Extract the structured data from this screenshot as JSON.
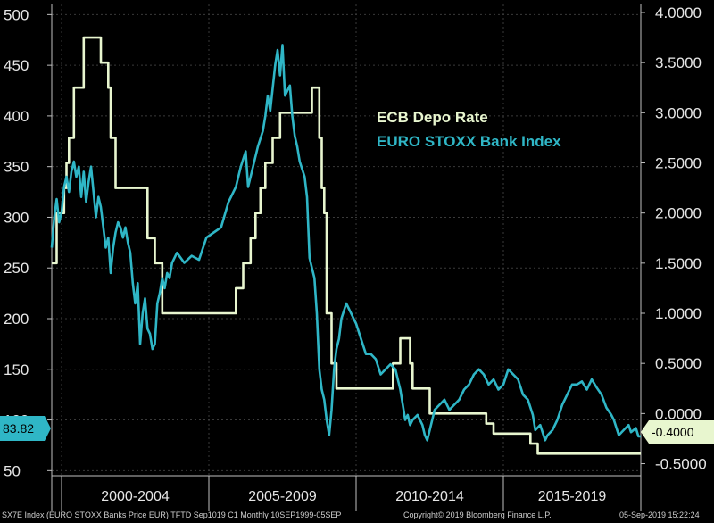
{
  "chart_data": {
    "type": "line",
    "title": "",
    "legend": {
      "placement": "top-right"
    },
    "grid": true,
    "x_range": [
      "1999-09",
      "2019-09"
    ],
    "period_labels": [
      "2000-2004",
      "2005-2009",
      "2010-2014",
      "2015-2019"
    ],
    "y_left": {
      "ticks": [
        "500",
        "450",
        "400",
        "350",
        "300",
        "250",
        "200",
        "150",
        "100",
        "50"
      ],
      "range": [
        45,
        510
      ]
    },
    "y_right": {
      "ticks": [
        "4.0000",
        "3.5000",
        "3.0000",
        "2.5000",
        "2.0000",
        "1.5000",
        "1.0000",
        "0.5000",
        "0.0000",
        "-0.5000"
      ],
      "range": [
        -0.62,
        4.08
      ]
    },
    "series": [
      {
        "name": "ECB Depo Rate",
        "axis": "right",
        "color": "#e8f6cf",
        "points": [
          [
            "1999-09",
            1.5
          ],
          [
            "1999-11",
            2.0
          ],
          [
            "2000-02",
            2.25
          ],
          [
            "2000-03",
            2.5
          ],
          [
            "2000-04",
            2.75
          ],
          [
            "2000-06",
            3.25
          ],
          [
            "2000-10",
            3.75
          ],
          [
            "2001-05",
            3.5
          ],
          [
            "2001-08",
            3.25
          ],
          [
            "2001-09",
            2.75
          ],
          [
            "2001-11",
            2.25
          ],
          [
            "2002-12",
            1.75
          ],
          [
            "2003-03",
            1.5
          ],
          [
            "2003-06",
            1.0
          ],
          [
            "2005-12",
            1.25
          ],
          [
            "2006-03",
            1.5
          ],
          [
            "2006-06",
            1.75
          ],
          [
            "2006-08",
            2.0
          ],
          [
            "2006-10",
            2.25
          ],
          [
            "2006-12",
            2.5
          ],
          [
            "2007-03",
            2.75
          ],
          [
            "2007-06",
            3.0
          ],
          [
            "2008-07",
            3.25
          ],
          [
            "2008-10",
            2.75
          ],
          [
            "2008-11",
            2.25
          ],
          [
            "2008-12",
            2.0
          ],
          [
            "2009-01",
            1.0
          ],
          [
            "2009-03",
            0.5
          ],
          [
            "2009-05",
            0.25
          ],
          [
            "2011-04",
            0.5
          ],
          [
            "2011-07",
            0.75
          ],
          [
            "2011-11",
            0.5
          ],
          [
            "2011-12",
            0.25
          ],
          [
            "2012-07",
            0.0
          ],
          [
            "2014-06",
            -0.1
          ],
          [
            "2014-09",
            -0.2
          ],
          [
            "2015-12",
            -0.3
          ],
          [
            "2016-03",
            -0.4
          ],
          [
            "2019-09",
            -0.4
          ]
        ]
      },
      {
        "name": "EURO STOXX Bank Index",
        "axis": "left",
        "color": "#2fb6c6",
        "points": [
          [
            "1999-09",
            270
          ],
          [
            "1999-10",
            300
          ],
          [
            "1999-11",
            318
          ],
          [
            "1999-12",
            295
          ],
          [
            "2000-01",
            305
          ],
          [
            "2000-02",
            330
          ],
          [
            "2000-03",
            340
          ],
          [
            "2000-04",
            325
          ],
          [
            "2000-05",
            345
          ],
          [
            "2000-06",
            355
          ],
          [
            "2000-07",
            340
          ],
          [
            "2000-08",
            350
          ],
          [
            "2000-09",
            320
          ],
          [
            "2000-10",
            345
          ],
          [
            "2000-11",
            315
          ],
          [
            "2000-12",
            335
          ],
          [
            "2001-01",
            350
          ],
          [
            "2001-02",
            325
          ],
          [
            "2001-03",
            300
          ],
          [
            "2001-04",
            320
          ],
          [
            "2001-05",
            310
          ],
          [
            "2001-06",
            290
          ],
          [
            "2001-07",
            270
          ],
          [
            "2001-08",
            280
          ],
          [
            "2001-09",
            245
          ],
          [
            "2001-10",
            270
          ],
          [
            "2001-11",
            285
          ],
          [
            "2001-12",
            295
          ],
          [
            "2002-01",
            290
          ],
          [
            "2002-02",
            280
          ],
          [
            "2002-03",
            290
          ],
          [
            "2002-04",
            275
          ],
          [
            "2002-05",
            265
          ],
          [
            "2002-06",
            235
          ],
          [
            "2002-07",
            215
          ],
          [
            "2002-08",
            235
          ],
          [
            "2002-09",
            175
          ],
          [
            "2002-10",
            205
          ],
          [
            "2002-11",
            220
          ],
          [
            "2002-12",
            190
          ],
          [
            "2003-01",
            185
          ],
          [
            "2003-02",
            170
          ],
          [
            "2003-03",
            175
          ],
          [
            "2003-04",
            215
          ],
          [
            "2003-05",
            225
          ],
          [
            "2003-06",
            240
          ],
          [
            "2003-07",
            230
          ],
          [
            "2003-08",
            245
          ],
          [
            "2003-09",
            240
          ],
          [
            "2003-10",
            255
          ],
          [
            "2003-11",
            260
          ],
          [
            "2003-12",
            265
          ],
          [
            "2004-03",
            255
          ],
          [
            "2004-06",
            262
          ],
          [
            "2004-09",
            258
          ],
          [
            "2004-12",
            280
          ],
          [
            "2005-03",
            285
          ],
          [
            "2005-06",
            290
          ],
          [
            "2005-09",
            315
          ],
          [
            "2005-12",
            330
          ],
          [
            "2006-02",
            350
          ],
          [
            "2006-04",
            365
          ],
          [
            "2006-05",
            330
          ],
          [
            "2006-06",
            340
          ],
          [
            "2006-09",
            370
          ],
          [
            "2006-11",
            385
          ],
          [
            "2006-12",
            400
          ],
          [
            "2007-01",
            420
          ],
          [
            "2007-02",
            405
          ],
          [
            "2007-04",
            450
          ],
          [
            "2007-05",
            465
          ],
          [
            "2007-06",
            440
          ],
          [
            "2007-07",
            470
          ],
          [
            "2007-08",
            420
          ],
          [
            "2007-10",
            430
          ],
          [
            "2007-11",
            400
          ],
          [
            "2007-12",
            380
          ],
          [
            "2008-01",
            370
          ],
          [
            "2008-02",
            355
          ],
          [
            "2008-04",
            340
          ],
          [
            "2008-05",
            320
          ],
          [
            "2008-06",
            260
          ],
          [
            "2008-07",
            250
          ],
          [
            "2008-08",
            240
          ],
          [
            "2008-09",
            205
          ],
          [
            "2008-10",
            150
          ],
          [
            "2008-11",
            130
          ],
          [
            "2008-12",
            120
          ],
          [
            "2009-01",
            100
          ],
          [
            "2009-02",
            85
          ],
          [
            "2009-03",
            110
          ],
          [
            "2009-04",
            150
          ],
          [
            "2009-05",
            170
          ],
          [
            "2009-06",
            180
          ],
          [
            "2009-07",
            200
          ],
          [
            "2009-09",
            215
          ],
          [
            "2009-11",
            205
          ],
          [
            "2010-01",
            195
          ],
          [
            "2010-03",
            180
          ],
          [
            "2010-05",
            165
          ],
          [
            "2010-07",
            165
          ],
          [
            "2010-09",
            160
          ],
          [
            "2010-11",
            145
          ],
          [
            "2011-01",
            150
          ],
          [
            "2011-03",
            155
          ],
          [
            "2011-05",
            150
          ],
          [
            "2011-07",
            130
          ],
          [
            "2011-08",
            115
          ],
          [
            "2011-09",
            100
          ],
          [
            "2011-10",
            105
          ],
          [
            "2011-11",
            95
          ],
          [
            "2011-12",
            100
          ],
          [
            "2012-02",
            105
          ],
          [
            "2012-04",
            95
          ],
          [
            "2012-05",
            85
          ],
          [
            "2012-06",
            80
          ],
          [
            "2012-07",
            90
          ],
          [
            "2012-09",
            110
          ],
          [
            "2012-11",
            115
          ],
          [
            "2013-01",
            120
          ],
          [
            "2013-03",
            110
          ],
          [
            "2013-05",
            115
          ],
          [
            "2013-07",
            120
          ],
          [
            "2013-09",
            130
          ],
          [
            "2013-11",
            135
          ],
          [
            "2014-01",
            145
          ],
          [
            "2014-03",
            150
          ],
          [
            "2014-05",
            145
          ],
          [
            "2014-07",
            135
          ],
          [
            "2014-09",
            140
          ],
          [
            "2014-11",
            130
          ],
          [
            "2015-01",
            135
          ],
          [
            "2015-03",
            150
          ],
          [
            "2015-05",
            145
          ],
          [
            "2015-07",
            140
          ],
          [
            "2015-09",
            125
          ],
          [
            "2015-11",
            120
          ],
          [
            "2016-01",
            105
          ],
          [
            "2016-02",
            90
          ],
          [
            "2016-04",
            95
          ],
          [
            "2016-06",
            80
          ],
          [
            "2016-07",
            85
          ],
          [
            "2016-09",
            90
          ],
          [
            "2016-11",
            100
          ],
          [
            "2017-01",
            115
          ],
          [
            "2017-03",
            125
          ],
          [
            "2017-05",
            135
          ],
          [
            "2017-07",
            135
          ],
          [
            "2017-09",
            138
          ],
          [
            "2017-11",
            130
          ],
          [
            "2018-01",
            140
          ],
          [
            "2018-03",
            132
          ],
          [
            "2018-05",
            125
          ],
          [
            "2018-07",
            112
          ],
          [
            "2018-09",
            105
          ],
          [
            "2018-10",
            100
          ],
          [
            "2018-12",
            85
          ],
          [
            "2019-02",
            90
          ],
          [
            "2019-04",
            95
          ],
          [
            "2019-05",
            88
          ],
          [
            "2019-07",
            92
          ],
          [
            "2019-08",
            83.82
          ],
          [
            "2019-09",
            83.82
          ]
        ]
      }
    ],
    "last_value_labels": {
      "left": "83.82",
      "right": "-0.4000"
    }
  },
  "legend_items": [
    "ECB Depo Rate",
    "EURO STOXX Bank Index"
  ],
  "footer": {
    "left": "SX7E Index (EURO STOXX Banks Price EUR) TFTD Sep1019 C1  Monthly 10SEP1999-05SEP",
    "middle": "Copyright© 2019 Bloomberg Finance L.P.",
    "right": "05-Sep-2019 15:22:24"
  },
  "colors": {
    "background": "#000000",
    "gridline": "#3a3a3a",
    "axis": "#bfbfbf",
    "ecb_line": "#e8f6cf",
    "stoxx_line": "#2fb6c6",
    "text": "#e6e6e6"
  }
}
